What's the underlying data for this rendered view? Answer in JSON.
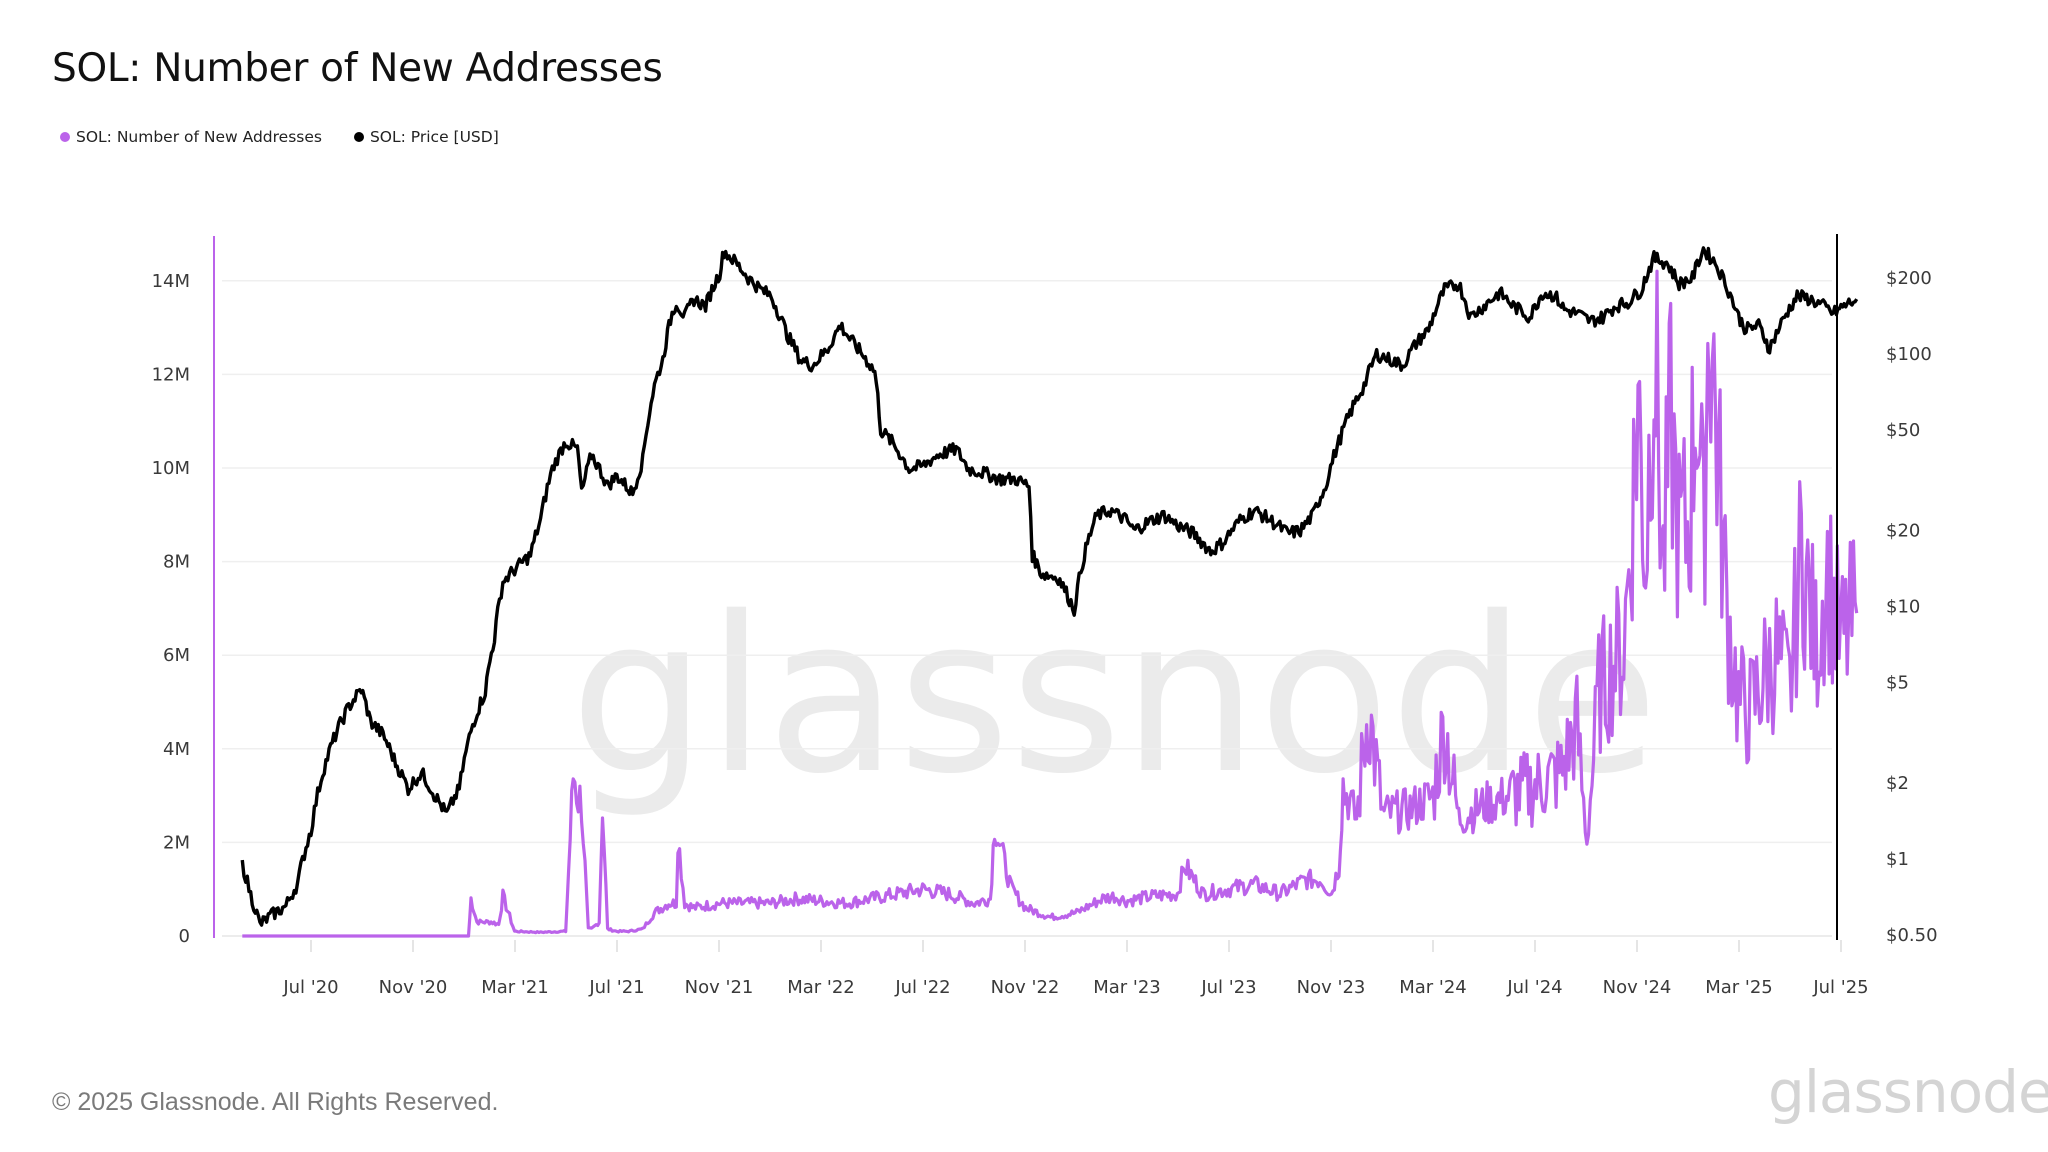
{
  "header": {
    "title": "SOL: Number of New Addresses"
  },
  "legend": [
    {
      "label": "SOL: Number of New Addresses",
      "color": "#bb63ea"
    },
    {
      "label": "SOL: Price [USD]",
      "color": "#000000"
    }
  ],
  "watermark": "glassnode",
  "footer": {
    "copyright": "© 2025 Glassnode. All Rights Reserved.",
    "logo": "glassnode"
  },
  "chart_data": {
    "type": "line",
    "title": "SOL: Number of New Addresses",
    "xlabel": "",
    "ylabel_left": "Number of New Addresses",
    "ylabel_right": "Price [USD]",
    "y_left_ticks": [
      "0",
      "2M",
      "4M",
      "6M",
      "8M",
      "10M",
      "12M",
      "14M"
    ],
    "y_left_range": [
      0,
      14000000
    ],
    "y_right_ticks": [
      "$0.50",
      "$1",
      "$2",
      "$5",
      "$10",
      "$20",
      "$50",
      "$100",
      "$200"
    ],
    "y_right_scale": "log",
    "x_ticks": [
      "Jul '20",
      "Nov '20",
      "Mar '21",
      "Jul '21",
      "Nov '21",
      "Mar '22",
      "Jul '22",
      "Nov '22",
      "Mar '23",
      "Jul '23",
      "Nov '23",
      "Mar '24",
      "Jul '24",
      "Nov '24",
      "Mar '25",
      "Jul '25"
    ],
    "grid": true,
    "legend_position": "top-left",
    "series": [
      {
        "name": "SOL: Number of New Addresses",
        "axis": "left",
        "color": "#bb63ea",
        "x": [
          "2020-04-10",
          "2020-06-01",
          "2020-08-01",
          "2020-10-01",
          "2020-12-01",
          "2021-01-05",
          "2021-01-08",
          "2021-01-15",
          "2021-02-01",
          "2021-02-10",
          "2021-02-15",
          "2021-03-01",
          "2021-04-01",
          "2021-05-01",
          "2021-05-10",
          "2021-05-12",
          "2021-05-20",
          "2021-05-28",
          "2021-06-01",
          "2021-06-10",
          "2021-06-14",
          "2021-06-20",
          "2021-07-01",
          "2021-07-15",
          "2021-08-01",
          "2021-08-15",
          "2021-09-01",
          "2021-09-10",
          "2021-09-12",
          "2021-09-20",
          "2021-10-01",
          "2021-11-01",
          "2021-12-01",
          "2022-01-01",
          "2022-02-01",
          "2022-03-01",
          "2022-04-01",
          "2022-05-01",
          "2022-06-01",
          "2022-07-01",
          "2022-08-01",
          "2022-09-01",
          "2022-09-20",
          "2022-09-25",
          "2022-10-15",
          "2022-11-01",
          "2022-12-01",
          "2023-01-01",
          "2023-02-01",
          "2023-02-15",
          "2023-03-01",
          "2023-04-01",
          "2023-05-01",
          "2023-05-10",
          "2023-06-01",
          "2023-07-01",
          "2023-08-01",
          "2023-09-01",
          "2023-10-01",
          "2023-10-20",
          "2023-11-01",
          "2023-11-10",
          "2023-11-15",
          "2023-12-01",
          "2023-12-15",
          "2024-01-01",
          "2024-02-01",
          "2024-03-01",
          "2024-03-15",
          "2024-04-01",
          "2024-05-01",
          "2024-06-01",
          "2024-07-01",
          "2024-08-01",
          "2024-08-20",
          "2024-09-01",
          "2024-09-15",
          "2024-10-01",
          "2024-10-15",
          "2024-10-25",
          "2024-11-01",
          "2024-11-10",
          "2024-11-20",
          "2024-12-01",
          "2024-12-10",
          "2024-12-20",
          "2025-01-01",
          "2025-01-10",
          "2025-01-18",
          "2025-01-25",
          "2025-02-05",
          "2025-02-15",
          "2025-03-01",
          "2025-03-15",
          "2025-04-01",
          "2025-04-15",
          "2025-05-01",
          "2025-05-15",
          "2025-06-01",
          "2025-06-15",
          "2025-07-01",
          "2025-07-20"
        ],
        "values": [
          0,
          0,
          0,
          0,
          0,
          0,
          800000,
          300000,
          300000,
          250000,
          850000,
          100000,
          80000,
          100000,
          3450000,
          3400000,
          2800000,
          150000,
          150000,
          300000,
          2800000,
          150000,
          100000,
          100000,
          150000,
          500000,
          700000,
          700000,
          2150000,
          700000,
          600000,
          700000,
          700000,
          700000,
          800000,
          750000,
          700000,
          800000,
          900000,
          1000000,
          900000,
          700000,
          800000,
          2400000,
          1000000,
          600000,
          400000,
          500000,
          800000,
          850000,
          750000,
          850000,
          900000,
          1500000,
          900000,
          1000000,
          1100000,
          900000,
          1200000,
          1200000,
          900000,
          1500000,
          3200000,
          2500000,
          4900000,
          2600000,
          2700000,
          3000000,
          4500000,
          2500000,
          2800000,
          3000000,
          3200000,
          3500000,
          4500000,
          2000000,
          5200000,
          5800000,
          6200000,
          9000000,
          11500000,
          8000000,
          13100000,
          7800000,
          11000000,
          8500000,
          8800000,
          12000000,
          8400000,
          13700000,
          10000000,
          7000000,
          5000000,
          4800000,
          5600000,
          6000000,
          5200000,
          8300000,
          6200000,
          7800000,
          6200000,
          6900000
        ]
      },
      {
        "name": "SOL: Price [USD]",
        "axis": "right",
        "color": "#000000",
        "x": [
          "2020-04-10",
          "2020-04-20",
          "2020-05-01",
          "2020-05-15",
          "2020-06-01",
          "2020-06-15",
          "2020-07-01",
          "2020-07-15",
          "2020-08-01",
          "2020-08-15",
          "2020-08-30",
          "2020-09-10",
          "2020-09-25",
          "2020-10-10",
          "2020-10-25",
          "2020-11-10",
          "2020-11-25",
          "2020-12-10",
          "2020-12-25",
          "2021-01-10",
          "2021-01-25",
          "2021-02-05",
          "2021-02-15",
          "2021-03-01",
          "2021-03-20",
          "2021-04-01",
          "2021-04-15",
          "2021-05-01",
          "2021-05-15",
          "2021-05-20",
          "2021-06-01",
          "2021-06-20",
          "2021-07-01",
          "2021-07-20",
          "2021-08-01",
          "2021-08-15",
          "2021-08-25",
          "2021-09-05",
          "2021-09-10",
          "2021-09-20",
          "2021-10-01",
          "2021-10-15",
          "2021-11-01",
          "2021-11-06",
          "2021-11-20",
          "2021-12-05",
          "2021-12-20",
          "2022-01-01",
          "2022-01-20",
          "2022-02-05",
          "2022-02-20",
          "2022-03-10",
          "2022-03-25",
          "2022-04-05",
          "2022-04-20",
          "2022-05-05",
          "2022-05-12",
          "2022-05-25",
          "2022-06-15",
          "2022-07-01",
          "2022-07-20",
          "2022-08-10",
          "2022-08-25",
          "2022-09-10",
          "2022-10-01",
          "2022-10-20",
          "2022-11-05",
          "2022-11-09",
          "2022-11-20",
          "2022-12-10",
          "2022-12-29",
          "2023-01-10",
          "2023-01-25",
          "2023-02-10",
          "2023-03-01",
          "2023-03-10",
          "2023-04-01",
          "2023-04-15",
          "2023-05-01",
          "2023-05-20",
          "2023-06-10",
          "2023-06-25",
          "2023-07-15",
          "2023-08-01",
          "2023-08-20",
          "2023-09-10",
          "2023-09-25",
          "2023-10-10",
          "2023-10-25",
          "2023-11-10",
          "2023-11-25",
          "2023-12-10",
          "2023-12-25",
          "2024-01-10",
          "2024-01-25",
          "2024-02-10",
          "2024-02-25",
          "2024-03-15",
          "2024-04-01",
          "2024-04-15",
          "2024-05-01",
          "2024-05-20",
          "2024-06-05",
          "2024-06-25",
          "2024-07-10",
          "2024-07-25",
          "2024-08-05",
          "2024-08-20",
          "2024-09-05",
          "2024-09-20",
          "2024-10-05",
          "2024-10-20",
          "2024-11-05",
          "2024-11-20",
          "2024-12-05",
          "2024-12-20",
          "2025-01-05",
          "2025-01-18",
          "2025-02-01",
          "2025-02-15",
          "2025-03-01",
          "2025-03-10",
          "2025-03-25",
          "2025-04-07",
          "2025-04-25",
          "2025-05-10",
          "2025-05-25",
          "2025-06-10",
          "2025-06-22",
          "2025-07-05",
          "2025-07-20"
        ],
        "values": [
          0.95,
          0.72,
          0.55,
          0.6,
          0.65,
          0.8,
          1.3,
          2.2,
          3.2,
          4.0,
          4.7,
          3.5,
          3.1,
          2.4,
          1.9,
          2.2,
          1.8,
          1.5,
          1.9,
          3.4,
          4.6,
          7.5,
          12.5,
          14.0,
          16.0,
          22.0,
          35.0,
          45.0,
          42.0,
          28.0,
          40.0,
          30.0,
          33.0,
          28.0,
          38.0,
          75.0,
          95.0,
          145.0,
          160.0,
          140.0,
          165.0,
          155.0,
          210.0,
          256.0,
          230.0,
          200.0,
          180.0,
          170.0,
          120.0,
          95.0,
          90.0,
          105.0,
          130.0,
          115.0,
          100.0,
          85.0,
          50.0,
          45.0,
          35.0,
          36.0,
          40.0,
          42.0,
          35.0,
          34.0,
          32.0,
          32.0,
          30.0,
          16.0,
          13.5,
          13.0,
          9.7,
          16.0,
          23.0,
          24.0,
          22.0,
          20.0,
          22.0,
          23.0,
          21.0,
          19.5,
          16.5,
          18.0,
          22.0,
          24.0,
          22.0,
          19.5,
          20.0,
          23.0,
          30.0,
          45.0,
          60.0,
          75.0,
          100.0,
          95.0,
          90.0,
          110.0,
          125.0,
          180.0,
          190.0,
          140.0,
          155.0,
          175.0,
          155.0,
          140.0,
          175.0,
          170.0,
          150.0,
          145.0,
          135.0,
          140.0,
          155.0,
          160.0,
          180.0,
          240.0,
          230.0,
          190.0,
          200.0,
          260.0,
          230.0,
          185.0,
          140.0,
          125.0,
          130.0,
          105.0,
          140.0,
          170.0,
          165.0,
          155.0,
          145.0,
          155.0,
          165.0
        ]
      }
    ]
  }
}
